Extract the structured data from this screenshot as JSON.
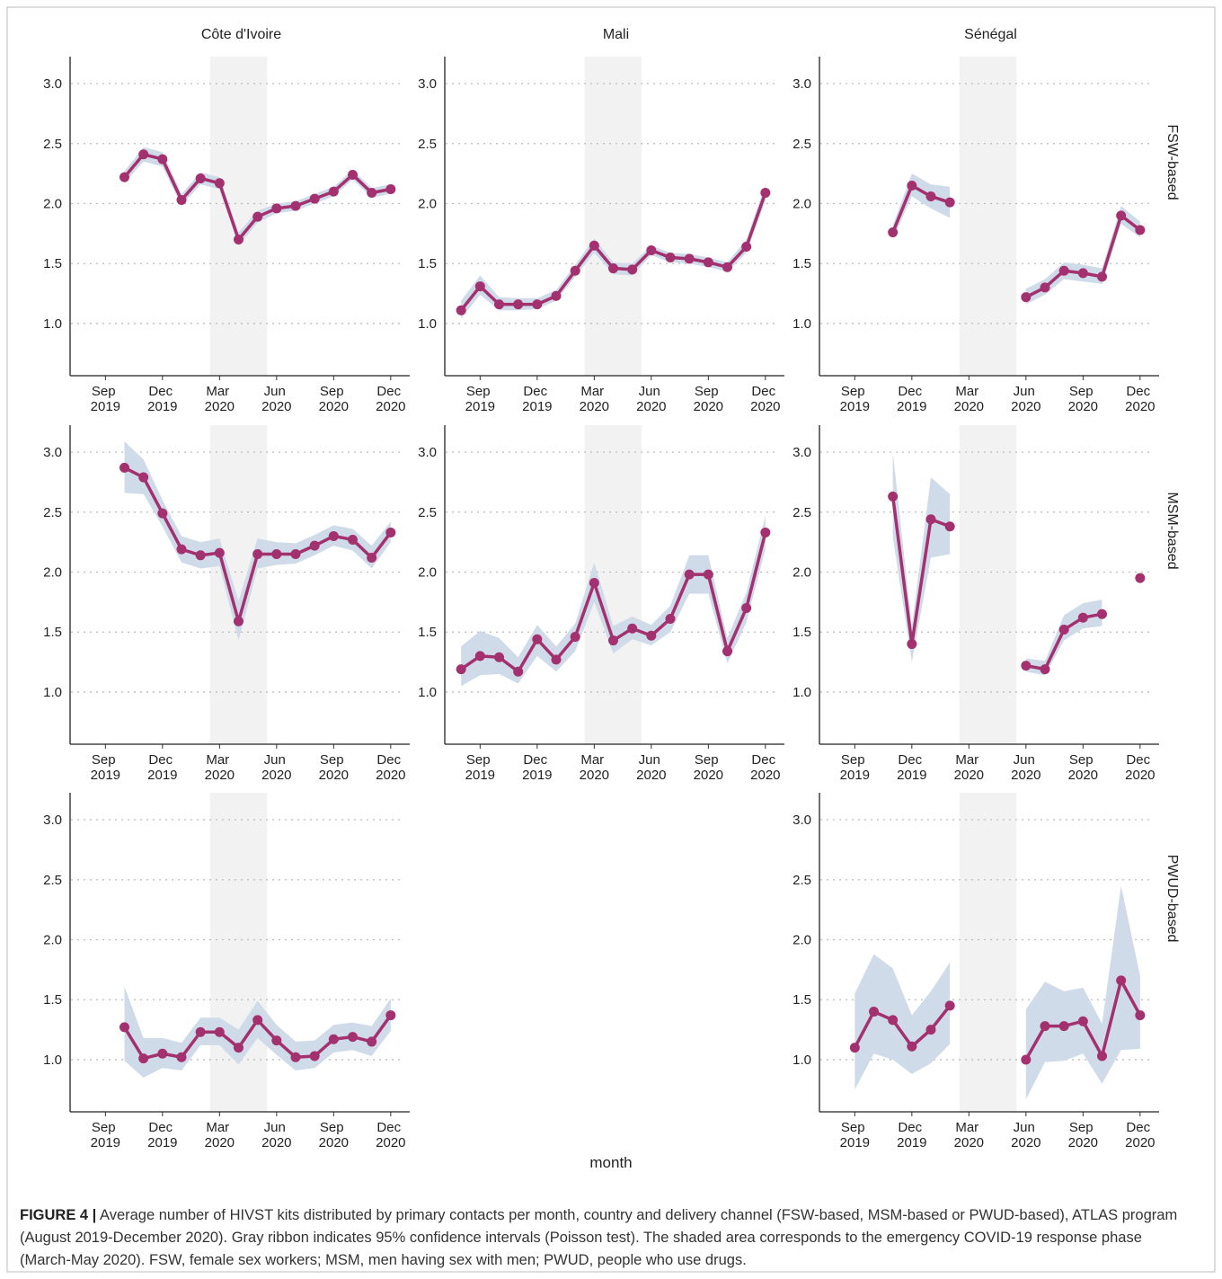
{
  "chart_data": {
    "type": "facet_line",
    "columns": [
      "Côte d'Ivoire",
      "Mali",
      "Sénégal"
    ],
    "rows": [
      "FSW-based",
      "MSM-based",
      "PWUD-based"
    ],
    "x_label": "month",
    "color": "#a3306f",
    "ribbon_color": "#cfdbe9",
    "shade_color": "#f2f2f2",
    "grid": true,
    "shade": [
      "2020-03",
      "2020-05"
    ],
    "xlim": [
      "2019-07",
      "2021-01"
    ],
    "xticks": [
      {
        "value": "2019-09",
        "label": "Sep 2019"
      },
      {
        "value": "2019-12",
        "label": "Dec 2019"
      },
      {
        "value": "2020-03",
        "label": "Mar 2020"
      },
      {
        "value": "2020-06",
        "label": "Jun 2020"
      },
      {
        "value": "2020-09",
        "label": "Sep 2020"
      },
      {
        "value": "2020-12",
        "label": "Dec 2020"
      }
    ],
    "ylim": [
      0.565,
      3.225
    ],
    "yticks": [
      {
        "value": 1,
        "label": "1.0"
      },
      {
        "value": 1.5,
        "label": "1.5"
      },
      {
        "value": 2,
        "label": "2.0"
      },
      {
        "value": 2.5,
        "label": "2.5"
      },
      {
        "value": 3,
        "label": "3.0"
      }
    ],
    "panels": [
      [
        {
          "x": [
            "2019-10",
            "2019-11",
            "2019-12",
            "2020-01",
            "2020-02",
            "2020-03",
            "2020-04",
            "2020-05",
            "2020-06",
            "2020-07",
            "2020-08",
            "2020-09",
            "2020-10",
            "2020-11",
            "2020-12"
          ],
          "values": [
            2.22,
            2.41,
            2.37,
            2.03,
            2.21,
            2.17,
            1.7,
            1.89,
            1.96,
            1.98,
            2.04,
            2.1,
            2.24,
            2.09,
            2.12
          ],
          "lower": [
            2.17,
            2.35,
            2.31,
            1.98,
            2.16,
            2.12,
            1.65,
            1.84,
            1.92,
            1.94,
            2.0,
            2.06,
            2.2,
            2.05,
            2.08
          ],
          "upper": [
            2.27,
            2.47,
            2.43,
            2.08,
            2.26,
            2.22,
            1.76,
            1.94,
            2.0,
            2.02,
            2.08,
            2.14,
            2.28,
            2.13,
            2.16
          ]
        },
        {
          "x": [
            "2019-08",
            "2019-09",
            "2019-10",
            "2019-11",
            "2019-12",
            "2020-01",
            "2020-02",
            "2020-03",
            "2020-04",
            "2020-05",
            "2020-06",
            "2020-07",
            "2020-08",
            "2020-09",
            "2020-10",
            "2020-11",
            "2020-12"
          ],
          "values": [
            1.11,
            1.31,
            1.16,
            1.16,
            1.16,
            1.23,
            1.44,
            1.65,
            1.46,
            1.45,
            1.61,
            1.55,
            1.54,
            1.51,
            1.47,
            1.64,
            2.09
          ],
          "lower": [
            1.04,
            1.24,
            1.11,
            1.11,
            1.12,
            1.19,
            1.39,
            1.59,
            1.41,
            1.4,
            1.57,
            1.51,
            1.5,
            1.47,
            1.43,
            1.59,
            2.02
          ],
          "upper": [
            1.19,
            1.4,
            1.22,
            1.21,
            1.21,
            1.28,
            1.49,
            1.71,
            1.51,
            1.5,
            1.65,
            1.59,
            1.58,
            1.55,
            1.51,
            1.7,
            2.16
          ]
        },
        {
          "x": [
            "2019-11",
            "2019-12",
            "2020-01",
            "2020-02",
            "2020-03",
            "2020-04",
            "2020-05",
            "2020-06",
            "2020-07",
            "2020-08",
            "2020-09",
            "2020-10",
            "2020-11",
            "2020-12"
          ],
          "values": [
            1.76,
            2.15,
            2.06,
            2.01,
            null,
            null,
            null,
            1.22,
            1.3,
            1.44,
            1.42,
            1.39,
            1.9,
            1.78
          ],
          "lower": [
            1.7,
            2.06,
            1.96,
            1.88,
            null,
            null,
            null,
            1.16,
            1.24,
            1.37,
            1.35,
            1.33,
            1.83,
            1.72
          ],
          "upper": [
            1.82,
            2.25,
            2.16,
            2.14,
            null,
            null,
            null,
            1.29,
            1.37,
            1.51,
            1.49,
            1.46,
            1.98,
            1.85
          ]
        }
      ],
      [
        {
          "x": [
            "2019-10",
            "2019-11",
            "2019-12",
            "2020-01",
            "2020-02",
            "2020-03",
            "2020-04",
            "2020-05",
            "2020-06",
            "2020-07",
            "2020-08",
            "2020-09",
            "2020-10",
            "2020-11",
            "2020-12"
          ],
          "values": [
            2.87,
            2.79,
            2.49,
            2.19,
            2.14,
            2.16,
            1.59,
            2.15,
            2.15,
            2.15,
            2.22,
            2.3,
            2.27,
            2.12,
            2.33
          ],
          "lower": [
            2.66,
            2.65,
            2.38,
            2.08,
            2.03,
            2.05,
            1.43,
            2.03,
            2.06,
            2.07,
            2.14,
            2.22,
            2.18,
            2.03,
            2.25
          ],
          "upper": [
            3.09,
            2.94,
            2.6,
            2.3,
            2.25,
            2.28,
            1.76,
            2.28,
            2.25,
            2.24,
            2.31,
            2.39,
            2.36,
            2.22,
            2.42
          ]
        },
        {
          "x": [
            "2019-08",
            "2019-09",
            "2019-10",
            "2019-11",
            "2019-12",
            "2020-01",
            "2020-02",
            "2020-03",
            "2020-04",
            "2020-05",
            "2020-06",
            "2020-07",
            "2020-08",
            "2020-09",
            "2020-10",
            "2020-11",
            "2020-12"
          ],
          "values": [
            1.19,
            1.3,
            1.29,
            1.17,
            1.44,
            1.27,
            1.46,
            1.91,
            1.43,
            1.53,
            1.47,
            1.61,
            1.98,
            1.98,
            1.34,
            1.7,
            2.33
          ],
          "lower": [
            1.05,
            1.14,
            1.15,
            1.07,
            1.3,
            1.17,
            1.34,
            1.75,
            1.32,
            1.44,
            1.39,
            1.5,
            1.82,
            1.82,
            1.24,
            1.58,
            2.19
          ],
          "upper": [
            1.38,
            1.51,
            1.45,
            1.29,
            1.56,
            1.38,
            1.57,
            2.08,
            1.55,
            1.63,
            1.56,
            1.72,
            2.14,
            2.14,
            1.45,
            1.83,
            2.47
          ]
        },
        {
          "x": [
            "2019-11",
            "2019-12",
            "2020-01",
            "2020-02",
            "2020-03",
            "2020-04",
            "2020-05",
            "2020-06",
            "2020-07",
            "2020-08",
            "2020-09",
            "2020-10",
            "2020-11",
            "2020-12"
          ],
          "values": [
            2.63,
            1.4,
            2.44,
            2.38,
            null,
            null,
            null,
            1.22,
            1.19,
            1.52,
            1.62,
            1.65,
            null,
            1.95
          ],
          "lower": [
            2.29,
            1.25,
            2.12,
            2.15,
            null,
            null,
            null,
            1.17,
            1.14,
            1.43,
            1.53,
            1.55,
            null,
            null
          ],
          "upper": [
            3.0,
            1.55,
            2.79,
            2.65,
            null,
            null,
            null,
            1.28,
            1.26,
            1.64,
            1.74,
            1.77,
            null,
            null
          ]
        }
      ],
      [
        {
          "x": [
            "2019-10",
            "2019-11",
            "2019-12",
            "2020-01",
            "2020-02",
            "2020-03",
            "2020-04",
            "2020-05",
            "2020-06",
            "2020-07",
            "2020-08",
            "2020-09",
            "2020-10",
            "2020-11",
            "2020-12"
          ],
          "values": [
            1.27,
            1.01,
            1.05,
            1.02,
            1.23,
            1.23,
            1.1,
            1.33,
            1.16,
            1.02,
            1.03,
            1.17,
            1.19,
            1.15,
            1.37
          ],
          "lower": [
            0.99,
            0.85,
            0.93,
            0.91,
            1.12,
            1.12,
            0.96,
            1.18,
            1.04,
            0.91,
            0.93,
            1.06,
            1.08,
            1.03,
            1.24
          ],
          "upper": [
            1.61,
            1.18,
            1.18,
            1.14,
            1.35,
            1.35,
            1.25,
            1.49,
            1.29,
            1.15,
            1.16,
            1.29,
            1.31,
            1.28,
            1.51
          ]
        },
        null,
        {
          "x": [
            "2019-09",
            "2019-10",
            "2019-11",
            "2019-12",
            "2020-01",
            "2020-02",
            "2020-03",
            "2020-04",
            "2020-05",
            "2020-06",
            "2020-07",
            "2020-08",
            "2020-09",
            "2020-10",
            "2020-11",
            "2020-12"
          ],
          "values": [
            1.1,
            1.4,
            1.33,
            1.11,
            1.25,
            1.45,
            null,
            null,
            null,
            1.0,
            1.28,
            1.28,
            1.32,
            1.03,
            1.66,
            1.37
          ],
          "lower": [
            0.75,
            1.05,
            1.0,
            0.88,
            0.97,
            1.13,
            null,
            null,
            null,
            0.67,
            0.98,
            0.99,
            1.05,
            0.8,
            1.08,
            1.09
          ],
          "upper": [
            1.55,
            1.88,
            1.76,
            1.37,
            1.57,
            1.81,
            null,
            null,
            null,
            1.42,
            1.65,
            1.57,
            1.6,
            1.3,
            2.45,
            1.7
          ]
        }
      ]
    ]
  },
  "caption": {
    "label": "FIGURE 4 |",
    "text": "Average number of HIVST kits distributed by primary contacts per month, country and delivery channel (FSW-based, MSM-based or PWUD-based), ATLAS program (August 2019-December 2020). Gray ribbon indicates 95% confidence intervals (Poisson test). The shaded area corresponds to the emergency COVID-19 response phase (March-May 2020). FSW, female sex workers; MSM, men having sex with men; PWUD, people who use drugs."
  }
}
